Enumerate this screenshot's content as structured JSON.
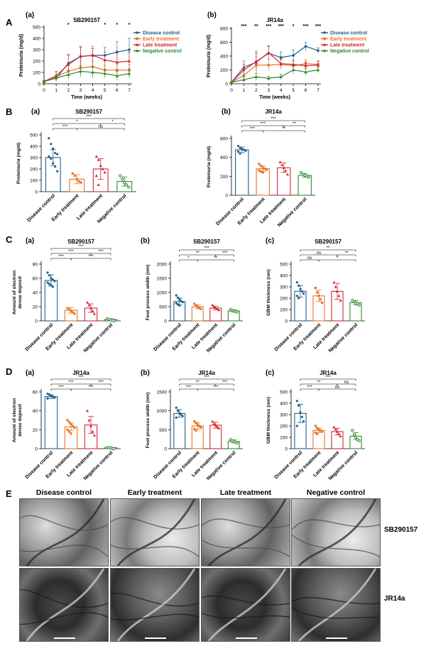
{
  "section_labels": {
    "A": "A",
    "B": "B",
    "C": "C",
    "D": "D",
    "E": "E"
  },
  "colors": {
    "disease": "#1f5f8b",
    "early": "#e8742a",
    "late": "#d22630",
    "negative": "#2e8b2e"
  },
  "panel_A": [
    {
      "letter": "(a)",
      "title": "SB290157",
      "ylabel": "Proteinuria (mg/d)",
      "xlabel": "Time (weeks)",
      "yticks": [
        "0",
        "100",
        "200",
        "300",
        "400",
        "500"
      ],
      "ylim": [
        0,
        500
      ],
      "xticks": [
        "0",
        "1",
        "2",
        "3",
        "4",
        "5",
        "6",
        "7"
      ],
      "stars": [
        {
          "x": 2,
          "label": "*"
        },
        {
          "x": 5,
          "label": "*"
        },
        {
          "x": 6,
          "label": "*"
        },
        {
          "x": 7,
          "label": "*"
        }
      ],
      "legend": [
        "Disease control",
        "Early treatment",
        "Late treatment",
        "Negative control"
      ],
      "series": [
        {
          "name": "Disease control",
          "values": [
            20,
            50,
            180,
            240,
            250,
            250,
            280,
            300
          ],
          "err": [
            10,
            30,
            80,
            80,
            60,
            70,
            90,
            100
          ]
        },
        {
          "name": "Early treatment",
          "values": [
            20,
            60,
            110,
            140,
            150,
            120,
            120,
            120
          ],
          "err": [
            10,
            40,
            60,
            60,
            50,
            40,
            50,
            50
          ]
        },
        {
          "name": "Late treatment",
          "values": [
            20,
            70,
            170,
            240,
            250,
            210,
            190,
            200
          ],
          "err": [
            10,
            40,
            80,
            90,
            80,
            70,
            80,
            80
          ]
        },
        {
          "name": "Negative control",
          "values": [
            20,
            50,
            80,
            110,
            100,
            90,
            70,
            90
          ],
          "err": [
            10,
            30,
            40,
            50,
            50,
            40,
            40,
            40
          ]
        }
      ]
    },
    {
      "letter": "(b)",
      "title": "JR14a",
      "ylabel": "Proteinuria (mg/d)",
      "xlabel": "Time (weeks)",
      "yticks": [
        "0",
        "200",
        "400",
        "600",
        "800"
      ],
      "ylim": [
        0,
        800
      ],
      "xticks": [
        "0",
        "1",
        "2",
        "3",
        "4",
        "5",
        "6",
        "7"
      ],
      "stars": [
        {
          "x": 1,
          "label": "***"
        },
        {
          "x": 2,
          "label": "**"
        },
        {
          "x": 3,
          "label": "***"
        },
        {
          "x": 4,
          "label": "***"
        },
        {
          "x": 5,
          "label": "*"
        },
        {
          "x": 6,
          "label": "***"
        },
        {
          "x": 7,
          "label": "***"
        }
      ],
      "legend": [
        "Disease control",
        "Early treatment",
        "Late treatment",
        "Negative control"
      ],
      "series": [
        {
          "name": "Disease control",
          "values": [
            20,
            200,
            320,
            440,
            380,
            410,
            540,
            480
          ],
          "err": [
            10,
            80,
            150,
            100,
            80,
            80,
            60,
            40
          ]
        },
        {
          "name": "Early treatment",
          "values": [
            20,
            120,
            270,
            270,
            280,
            260,
            290,
            280
          ],
          "err": [
            10,
            80,
            120,
            80,
            70,
            60,
            60,
            50
          ]
        },
        {
          "name": "Late treatment",
          "values": [
            20,
            240,
            310,
            450,
            290,
            280,
            260,
            270
          ],
          "err": [
            10,
            90,
            130,
            100,
            70,
            60,
            60,
            50
          ]
        },
        {
          "name": "Negative control",
          "values": [
            20,
            60,
            100,
            80,
            100,
            200,
            170,
            200
          ],
          "err": [
            10,
            40,
            50,
            30,
            40,
            60,
            50,
            40
          ]
        }
      ]
    }
  ],
  "categories": [
    "Disease control",
    "Early treatment",
    "Late treatment",
    "Negative control"
  ],
  "bar_panels": [
    {
      "id": "Ba",
      "sec": "B",
      "letter": "(a)",
      "title": "SB290157",
      "ylabel": "Proteinuria (mg/d)",
      "ylabel2": "",
      "yticks": [
        "0",
        "100",
        "200",
        "300",
        "400",
        "500"
      ],
      "ylim": [
        0,
        500
      ],
      "values": [
        300,
        110,
        200,
        90
      ],
      "err": [
        70,
        40,
        90,
        40
      ],
      "points": [
        [
          470,
          420,
          380,
          340,
          330,
          310,
          290,
          250,
          220,
          180
        ],
        [
          160,
          140,
          110,
          90,
          80
        ],
        [
          310,
          280,
          230,
          200,
          170,
          140,
          60
        ],
        [
          140,
          110,
          80,
          60,
          40
        ]
      ],
      "brackets": [
        {
          "from": 0,
          "to": 3,
          "label": "***",
          "row": 0
        },
        {
          "from": 0,
          "to": 2,
          "label": "*",
          "row": 1
        },
        {
          "from": 2,
          "to": 3,
          "label": "*",
          "row": 1
        },
        {
          "from": 0,
          "to": 1,
          "label": "***",
          "row": 2
        },
        {
          "from": 1,
          "to": 3,
          "label": "ns",
          "row": 2
        }
      ]
    },
    {
      "id": "Bb",
      "sec": "",
      "letter": "(b)",
      "title": "JR14a",
      "ylabel": "Proteinuria (mg/d)",
      "ylabel2": "",
      "yticks": [
        "0",
        "200",
        "400",
        "600"
      ],
      "ylim": [
        0,
        600
      ],
      "values": [
        480,
        280,
        290,
        210
      ],
      "err": [
        30,
        30,
        50,
        20
      ],
      "points": [
        [
          520,
          500,
          490,
          480,
          470,
          460,
          440
        ],
        [
          330,
          310,
          290,
          280,
          270,
          260,
          250,
          240
        ],
        [
          350,
          320,
          290,
          260,
          220
        ],
        [
          240,
          220,
          210,
          200,
          190
        ]
      ],
      "brackets": [
        {
          "from": 0,
          "to": 3,
          "label": "***",
          "row": 0
        },
        {
          "from": 0,
          "to": 2,
          "label": "***",
          "row": 1
        },
        {
          "from": 2,
          "to": 3,
          "label": "**",
          "row": 1
        },
        {
          "from": 0,
          "to": 1,
          "label": "***",
          "row": 2
        },
        {
          "from": 1,
          "to": 3,
          "label": "**",
          "row": 2
        }
      ]
    },
    {
      "id": "Ca",
      "sec": "C",
      "letter": "(a)",
      "title": "SB290157",
      "ylabel": "Amount of electron",
      "ylabel2": "dense deposit",
      "yticks": [
        "0",
        "20",
        "40",
        "60",
        "80"
      ],
      "ylim": [
        0,
        80
      ],
      "values": [
        57,
        15,
        18,
        2
      ],
      "err": [
        8,
        4,
        6,
        1
      ],
      "points": [
        [
          68,
          64,
          60,
          58,
          56,
          54,
          52,
          50,
          48
        ],
        [
          18,
          16,
          14,
          12,
          10
        ],
        [
          26,
          22,
          18,
          14,
          10
        ],
        [
          3,
          2,
          1,
          1,
          0
        ]
      ],
      "brackets": [
        {
          "from": 0,
          "to": 3,
          "label": "***",
          "row": 0
        },
        {
          "from": 0,
          "to": 2,
          "label": "***",
          "row": 1
        },
        {
          "from": 2,
          "to": 3,
          "label": "***",
          "row": 1
        },
        {
          "from": 0,
          "to": 1,
          "label": "***",
          "row": 2
        },
        {
          "from": 1,
          "to": 3,
          "label": "***",
          "row": 2
        }
      ]
    },
    {
      "id": "Cb",
      "sec": "",
      "letter": "(b)",
      "title": "SB290157",
      "ylabel": "Foot process width (nm)",
      "ylabel2": "",
      "yticks": [
        "0",
        "500",
        "1000",
        "1500",
        "2000"
      ],
      "ylim": [
        0,
        2000
      ],
      "values": [
        680,
        500,
        450,
        350
      ],
      "err": [
        120,
        70,
        60,
        40
      ],
      "points": [
        [
          900,
          820,
          760,
          700,
          660,
          620,
          580,
          540
        ],
        [
          600,
          540,
          500,
          460,
          420
        ],
        [
          560,
          500,
          460,
          420,
          380
        ],
        [
          400,
          370,
          350,
          330,
          310
        ]
      ],
      "brackets": [
        {
          "from": 0,
          "to": 3,
          "label": "***",
          "row": 0
        },
        {
          "from": 0,
          "to": 2,
          "label": "**",
          "row": 1
        },
        {
          "from": 2,
          "to": 3,
          "label": "***",
          "row": 1
        },
        {
          "from": 0,
          "to": 1,
          "label": "*",
          "row": 2
        },
        {
          "from": 1,
          "to": 3,
          "label": "**",
          "row": 2
        }
      ]
    },
    {
      "id": "Cc",
      "sec": "",
      "letter": "(c)",
      "title": "SB290157",
      "ylabel": "GBM thickness (nm)",
      "ylabel2": "",
      "yticks": [
        "0",
        "100",
        "200",
        "300",
        "400",
        "500"
      ],
      "ylim": [
        0,
        500
      ],
      "values": [
        260,
        220,
        260,
        160
      ],
      "err": [
        50,
        50,
        70,
        20
      ],
      "points": [
        [
          340,
          310,
          280,
          260,
          240,
          220,
          200
        ],
        [
          290,
          250,
          220,
          190,
          160
        ],
        [
          340,
          300,
          260,
          220,
          180
        ],
        [
          180,
          170,
          160,
          150,
          140
        ]
      ],
      "brackets": [
        {
          "from": 0,
          "to": 3,
          "label": "**",
          "row": 0
        },
        {
          "from": 0,
          "to": 2,
          "label": "ns",
          "row": 1
        },
        {
          "from": 2,
          "to": 3,
          "label": "**",
          "row": 1
        },
        {
          "from": 0,
          "to": 1,
          "label": "ns",
          "row": 2
        },
        {
          "from": 1,
          "to": 3,
          "label": "*",
          "row": 2
        }
      ]
    },
    {
      "id": "Da",
      "sec": "D",
      "letter": "(a)",
      "title": "JR14a",
      "ylabel": "Amount of electron",
      "ylabel2": "dense deposit",
      "yticks": [
        "0",
        "20",
        "40",
        "60"
      ],
      "ylim": [
        0,
        60
      ],
      "values": [
        55,
        23,
        25,
        1
      ],
      "err": [
        2,
        4,
        9,
        0.5
      ],
      "points": [
        [
          58,
          57,
          56,
          55,
          54,
          53
        ],
        [
          30,
          28,
          26,
          24,
          22,
          20,
          18,
          16
        ],
        [
          40,
          30,
          24,
          18,
          14
        ],
        [
          1,
          1,
          1,
          0,
          0
        ]
      ],
      "brackets": [
        {
          "from": 0,
          "to": 3,
          "label": "***",
          "row": 0
        },
        {
          "from": 0,
          "to": 2,
          "label": "***",
          "row": 1
        },
        {
          "from": 2,
          "to": 3,
          "label": "***",
          "row": 1
        },
        {
          "from": 0,
          "to": 1,
          "label": "***",
          "row": 2
        },
        {
          "from": 1,
          "to": 3,
          "label": "***",
          "row": 2
        }
      ]
    },
    {
      "id": "Db",
      "sec": "",
      "letter": "(b)",
      "title": "JR14a",
      "ylabel": "Foot process width (nm)",
      "ylabel2": "",
      "yticks": [
        "0",
        "500",
        "1000",
        "1500"
      ],
      "ylim": [
        0,
        1500
      ],
      "values": [
        930,
        600,
        620,
        190
      ],
      "err": [
        100,
        90,
        80,
        40
      ],
      "points": [
        [
          1080,
          1000,
          940,
          900,
          860,
          820
        ],
        [
          720,
          680,
          640,
          600,
          560,
          520,
          480
        ],
        [
          720,
          660,
          620,
          580,
          540
        ],
        [
          240,
          210,
          190,
          170,
          150
        ]
      ],
      "brackets": [
        {
          "from": 0,
          "to": 3,
          "label": "***",
          "row": 0
        },
        {
          "from": 0,
          "to": 2,
          "label": "**",
          "row": 1
        },
        {
          "from": 2,
          "to": 3,
          "label": "***",
          "row": 1
        },
        {
          "from": 0,
          "to": 1,
          "label": "***",
          "row": 2
        },
        {
          "from": 1,
          "to": 3,
          "label": "***",
          "row": 2
        }
      ]
    },
    {
      "id": "Dc",
      "sec": "",
      "letter": "(c)",
      "title": "JR14a",
      "ylabel": "GBM thickness (nm)",
      "ylabel2": "",
      "yticks": [
        "0",
        "100",
        "200",
        "300",
        "400",
        "500"
      ],
      "ylim": [
        0,
        500
      ],
      "values": [
        310,
        160,
        150,
        110
      ],
      "err": [
        80,
        20,
        30,
        30
      ],
      "points": [
        [
          420,
          380,
          320,
          280,
          240,
          200
        ],
        [
          200,
          180,
          170,
          160,
          150,
          140,
          130
        ],
        [
          190,
          170,
          150,
          130,
          110
        ],
        [
          160,
          120,
          100,
          80,
          70
        ]
      ],
      "brackets": [
        {
          "from": 0,
          "to": 3,
          "label": "***",
          "row": 0
        },
        {
          "from": 0,
          "to": 2,
          "label": "**",
          "row": 1
        },
        {
          "from": 2,
          "to": 3,
          "label": "ns",
          "row": 1
        },
        {
          "from": 0,
          "to": 1,
          "label": "***",
          "row": 2
        },
        {
          "from": 1,
          "to": 3,
          "label": "ns",
          "row": 2
        }
      ]
    }
  ],
  "panel_E": {
    "col_titles": [
      "Disease control",
      "Early treatment",
      "Late treatment",
      "Negative control"
    ],
    "row_labels": [
      "SB290157",
      "JR14a"
    ]
  }
}
